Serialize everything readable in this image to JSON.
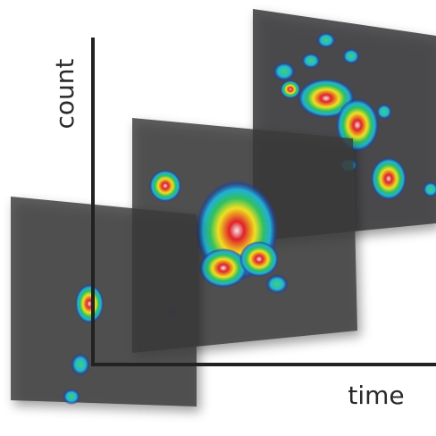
{
  "labels": {
    "y_axis": "count",
    "x_axis": "time"
  }
}
